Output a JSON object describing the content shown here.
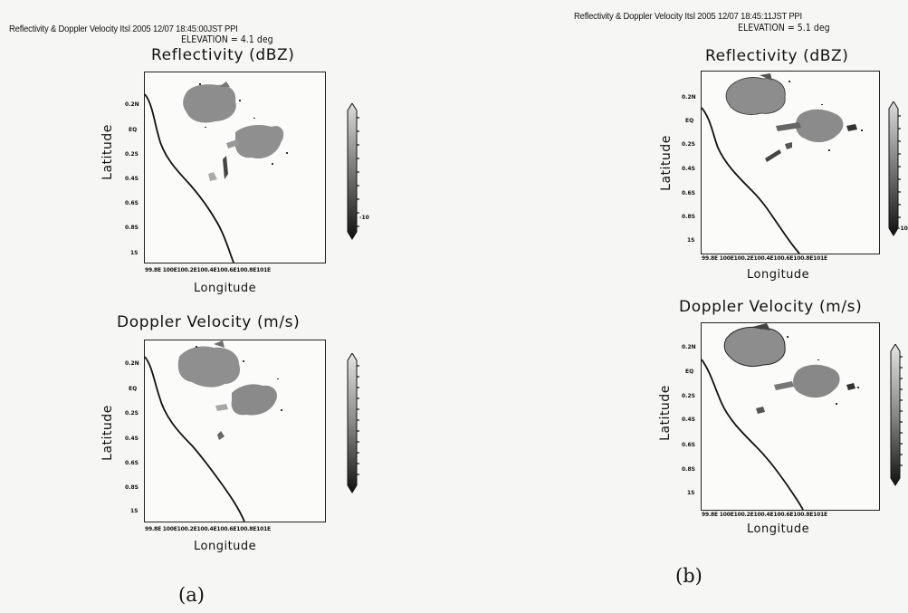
{
  "figure": {
    "panels": [
      {
        "header": "Reflectivity & Doppler Velocity  Itsl    2005 12/07 18:45:00JST    PPI",
        "elevation": "ELEVATION = 4.1 deg",
        "caption": "(a)",
        "plots": [
          {
            "title": "Reflectivity (dBZ)",
            "ylabel": "Latitude",
            "xlabel": "Longitude",
            "yticks": [
              "0.2N",
              "EQ",
              "0.2S",
              "0.4S",
              "0.6S",
              "0.8S",
              "1S"
            ],
            "xticks": "99.8E 100E100.2E100.4E100.6E100.8E101E",
            "colorbar_min_label": "-10"
          },
          {
            "title": "Doppler Velocity (m/s)",
            "ylabel": "Latitude",
            "xlabel": "Longitude",
            "yticks": [
              "0.2N",
              "EQ",
              "0.2S",
              "0.4S",
              "0.6S",
              "0.8S",
              "1S"
            ],
            "xticks": "99.8E 100E100.2E100.4E100.6E100.8E101E"
          }
        ]
      },
      {
        "header": "Reflectivity & Doppler Velocity  Itsl    2005 12/07 18:45:11JST    PPI",
        "elevation": "ELEVATION = 5.1 deg",
        "caption": "(b)",
        "plots": [
          {
            "title": "Reflectivity (dBZ)",
            "ylabel": "Latitude",
            "xlabel": "Longitude",
            "yticks": [
              "0.2N",
              "EQ",
              "0.2S",
              "0.4S",
              "0.6S",
              "0.8S",
              "1S"
            ],
            "xticks": "99.8E 100E100.2E100.4E100.6E100.8E101E",
            "colorbar_min_label": "-10"
          },
          {
            "title": "Doppler Velocity (m/s)",
            "ylabel": "Latitude",
            "xlabel": "Longitude",
            "yticks": [
              "0.2N",
              "EQ",
              "0.2S",
              "0.4S",
              "0.6S",
              "0.8S",
              "1S"
            ],
            "xticks": "99.8E 100E100.2E100.4E100.6E100.8E101E"
          }
        ]
      }
    ]
  }
}
